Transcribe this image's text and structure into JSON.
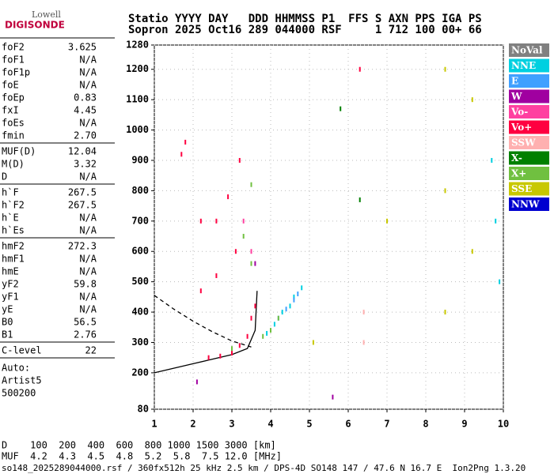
{
  "logo": {
    "top": "Lowell",
    "bottom": "DIGISONDE"
  },
  "header": [
    "Statio YYYY DAY   DDD HHMMSS P1  FFS S AXN PPS IGA PS",
    "Sopron 2025 Oct16 289 044000 RSF     1 712 100 00+ 66"
  ],
  "parameters": [
    [
      [
        "foF2",
        "3.625"
      ],
      [
        "foF1",
        "N/A"
      ],
      [
        "foF1p",
        "N/A"
      ],
      [
        "foE",
        "N/A"
      ],
      [
        "foEp",
        "0.83"
      ],
      [
        "fxI",
        "4.45"
      ],
      [
        "foEs",
        "N/A"
      ],
      [
        "fmin",
        "2.70"
      ]
    ],
    [
      [
        "MUF(D)",
        "12.04"
      ],
      [
        "M(D)",
        "3.32"
      ],
      [
        "D",
        "N/A"
      ]
    ],
    [
      [
        "h`F",
        "267.5"
      ],
      [
        "h`F2",
        "267.5"
      ],
      [
        "h`E",
        "N/A"
      ],
      [
        "h`Es",
        "N/A"
      ]
    ],
    [
      [
        "hmF2",
        "272.3"
      ],
      [
        "hmF1",
        "N/A"
      ],
      [
        "hmE",
        "N/A"
      ],
      [
        "yF2",
        "59.8"
      ],
      [
        "yF1",
        "N/A"
      ],
      [
        "yE",
        "N/A"
      ],
      [
        "B0",
        "56.5"
      ],
      [
        "B1",
        "2.76"
      ]
    ],
    [
      [
        "C-level",
        "22"
      ]
    ]
  ],
  "auto": [
    "Auto:",
    "Artist5",
    "500200"
  ],
  "distance_table": [
    "D    100  200  400  600  800 1000 1500 3000 [km]",
    "MUF  4.2  4.3  4.5  4.8  5.2  5.8  7.5 12.0 [MHz]"
  ],
  "footer": "so148_2025289044000.rsf / 360fx512h 25 kHz 2.5 km / DPS-4D SO148 147 / 47.6 N 16.7 E  Ion2Png 1.3.20",
  "chart_data": {
    "type": "scatter",
    "xlim": [
      1,
      10
    ],
    "xticks": [
      1,
      2,
      3,
      4,
      5,
      6,
      7,
      8,
      9,
      10
    ],
    "ylim": [
      80,
      1280
    ],
    "yticks": [
      80,
      200,
      300,
      400,
      500,
      600,
      700,
      800,
      900,
      1000,
      1100,
      1200,
      1280
    ],
    "grid": true,
    "series": [
      {
        "name": "NoVal",
        "color": "#808080",
        "x": [],
        "values": []
      },
      {
        "name": "NNE",
        "color": "#00d0e0",
        "x": [
          3.9,
          4.1,
          4.3,
          4.5,
          4.6,
          4.8,
          9.7,
          9.8,
          9.9
        ],
        "values": [
          330,
          360,
          400,
          420,
          450,
          480,
          900,
          700,
          500
        ]
      },
      {
        "name": "E",
        "color": "#40a0ff",
        "x": [
          4.2,
          4.4,
          4.6,
          4.7
        ],
        "values": [
          380,
          410,
          440,
          460
        ]
      },
      {
        "name": "W",
        "color": "#a000a0",
        "x": [
          2.1,
          3.6,
          5.6
        ],
        "values": [
          170,
          560,
          120
        ]
      },
      {
        "name": "Vo-",
        "color": "#ff40a0",
        "x": [
          3.3,
          3.5
        ],
        "values": [
          700,
          600
        ]
      },
      {
        "name": "Vo+",
        "color": "#ff0040",
        "x": [
          2.4,
          2.7,
          3.0,
          3.2,
          3.4,
          3.5,
          3.6,
          2.2,
          2.6,
          3.1,
          2.6,
          2.9,
          3.2,
          1.7,
          1.8,
          2.2,
          6.3
        ],
        "values": [
          250,
          255,
          265,
          290,
          320,
          380,
          420,
          470,
          520,
          600,
          700,
          780,
          900,
          920,
          960,
          700,
          1200
        ]
      },
      {
        "name": "SSW",
        "color": "#ffb0b0",
        "x": [
          6.4,
          6.4
        ],
        "values": [
          400,
          300
        ]
      },
      {
        "name": "X-",
        "color": "#008000",
        "x": [
          5.8,
          6.3
        ],
        "values": [
          1070,
          770
        ]
      },
      {
        "name": "X+",
        "color": "#70c040",
        "x": [
          3.8,
          4.0,
          4.2,
          3.0,
          3.3,
          3.5,
          3.5
        ],
        "values": [
          320,
          340,
          380,
          280,
          650,
          560,
          820
        ]
      },
      {
        "name": "SSE",
        "color": "#c8c800",
        "x": [
          8.5,
          8.5,
          8.5,
          9.2,
          9.2,
          7.0,
          5.1
        ],
        "values": [
          1200,
          800,
          400,
          1100,
          600,
          700,
          300
        ]
      },
      {
        "name": "NNW",
        "color": "#0000d0",
        "x": [],
        "values": []
      }
    ],
    "curves": [
      {
        "color": "#000000",
        "dash": true,
        "x": [
          1.0,
          1.5,
          2.0,
          2.5,
          3.0,
          3.5
        ],
        "values": [
          455,
          410,
          370,
          335,
          305,
          285
        ]
      },
      {
        "color": "#000000",
        "dash": false,
        "x": [
          1.0,
          1.5,
          2.0,
          2.5,
          3.0,
          3.4,
          3.6,
          3.65
        ],
        "values": [
          200,
          215,
          230,
          245,
          260,
          280,
          340,
          470
        ]
      }
    ]
  }
}
